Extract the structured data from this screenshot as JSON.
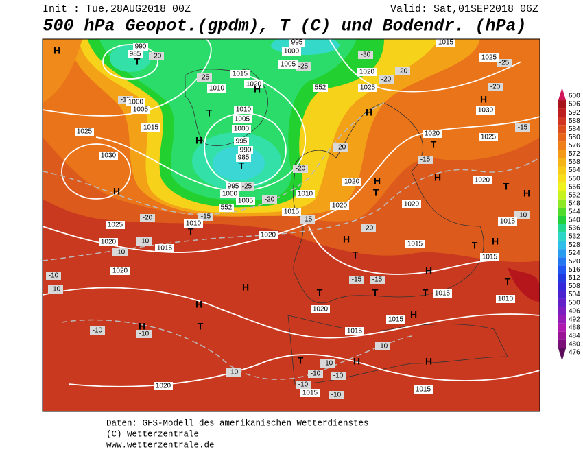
{
  "header": {
    "init": "Init : Tue,28AUG2018 00Z",
    "valid": "Valid: Sat,01SEP2018 06Z",
    "title": "500 hPa Geopot.(gpdm), T (C) und Bodendr. (hPa)"
  },
  "footer": [
    "Daten: GFS-Modell des amerikanischen Wetterdienstes",
    "(C) Wetterzentrale",
    "www.wetterzentrale.de"
  ],
  "colorbar": {
    "levels": [
      600,
      596,
      592,
      588,
      584,
      580,
      576,
      572,
      568,
      564,
      560,
      556,
      552,
      548,
      544,
      540,
      536,
      532,
      528,
      524,
      520,
      516,
      512,
      508,
      504,
      500,
      496,
      492,
      488,
      484,
      480,
      476
    ],
    "colors": [
      "#d2165a",
      "#a8141c",
      "#be1e1e",
      "#cf3520",
      "#dc4d1e",
      "#e7661b",
      "#ee7f19",
      "#f39a18",
      "#f5b418",
      "#f6cc19",
      "#f7e01a",
      "#eef21d",
      "#c6f220",
      "#8fe824",
      "#4fdc2a",
      "#22d13c",
      "#25d890",
      "#2ed6c8",
      "#2fbfe8",
      "#2a9cf0",
      "#2378f2",
      "#1f55f0",
      "#2238e0",
      "#3528d8",
      "#4c22d0",
      "#6420c8",
      "#7c1ec0",
      "#961cb8",
      "#b01aae",
      "#9a1496",
      "#7a1078",
      "#5a0c5a"
    ]
  },
  "pressure_labels": [
    "990",
    "985",
    "995",
    "1000",
    "1015",
    "1025",
    "1005",
    "1015",
    "1010",
    "1020",
    "1020",
    "1025",
    "1000",
    "1005",
    "1015",
    "1010",
    "1005",
    "1000",
    "995",
    "990",
    "985",
    "995",
    "1000",
    "1005",
    "1025",
    "1030",
    "1025",
    "1020",
    "1010",
    "1015",
    "1020",
    "1010",
    "1015",
    "1020",
    "1020",
    "1020",
    "1020",
    "1020",
    "1015",
    "1030",
    "1025",
    "1015",
    "1015",
    "1015",
    "1010",
    "1020",
    "1020",
    "1015",
    "1015",
    "1020",
    "1015",
    "1015",
    "552",
    "552"
  ],
  "pressure_centers": [
    "H",
    "T",
    "H",
    "T",
    "H",
    "T",
    "H",
    "T",
    "H",
    "T",
    "H",
    "T",
    "H",
    "T",
    "H",
    "H",
    "T",
    "H",
    "H",
    "T",
    "H",
    "T",
    "H",
    "H",
    "T",
    "H",
    "T",
    "T",
    "T",
    "H",
    "T",
    "H",
    "H"
  ],
  "isotherm_labels": [
    "-20",
    "-25",
    "-15",
    "-25",
    "-30",
    "-20",
    "-20",
    "-20",
    "-25",
    "-15",
    "-20",
    "-15",
    "-20",
    "-25",
    "-20",
    "-20",
    "-15",
    "-15",
    "-20",
    "-10",
    "-10",
    "-10",
    "-10",
    "-15",
    "-15",
    "-10",
    "-10",
    "-10",
    "-10",
    "-10",
    "-10",
    "-10",
    "-10",
    "-10",
    "-10"
  ]
}
